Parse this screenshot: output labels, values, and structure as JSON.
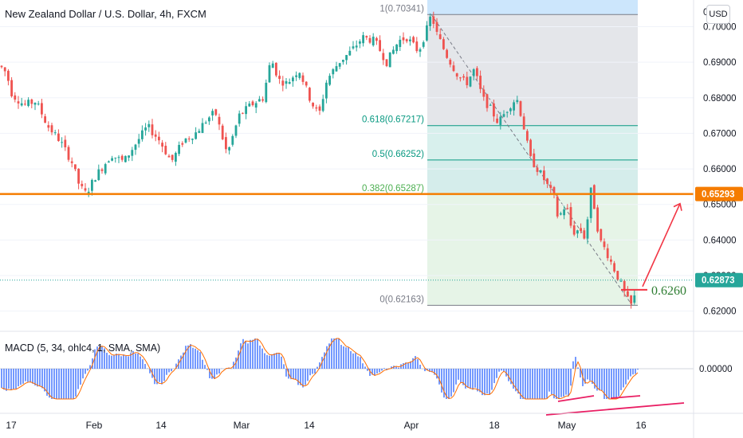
{
  "header": {
    "title": "New Zealand Dollar / U.S. Dollar, 4h, FXCM",
    "currency_button": "USD"
  },
  "macd": {
    "title": "MACD (5, 34, ohlc4, 1, SMA, SMA)"
  },
  "colors": {
    "up": "#26a69a",
    "down": "#ef5350",
    "macd_bar": "#2962ff",
    "signal_line": "#ff6d00",
    "resistance": "#f57c00",
    "arrow": "#f23645",
    "fib_gray": "#e1e3e8",
    "fib_teal": "#a8ddd6",
    "fib_green": "#c8e6c9",
    "fib_blue": "#bbdefb",
    "current_price": "#26a69a"
  },
  "chart_data": {
    "type": "candlestick",
    "symbol": "NZDUSD",
    "timeframe": "4h",
    "y_axis": {
      "min": 0.615,
      "max": 0.7075,
      "ticks": [
        "0.70000",
        "0.69000",
        "0.68000",
        "0.67000",
        "0.66000",
        "0.65000",
        "0.64000",
        "0.63000",
        "0.62000"
      ]
    },
    "x_axis": {
      "labels": [
        "17",
        "Feb",
        "14",
        "Mar",
        "14",
        "Apr",
        "18",
        "May",
        "16"
      ]
    },
    "price_path": [
      [
        0,
        0.689
      ],
      [
        8,
        0.687
      ],
      [
        15,
        0.681
      ],
      [
        30,
        0.678
      ],
      [
        45,
        0.679
      ],
      [
        60,
        0.672
      ],
      [
        75,
        0.668
      ],
      [
        90,
        0.662
      ],
      [
        100,
        0.655
      ],
      [
        108,
        0.653
      ],
      [
        120,
        0.658
      ],
      [
        140,
        0.664
      ],
      [
        155,
        0.662
      ],
      [
        170,
        0.667
      ],
      [
        185,
        0.672
      ],
      [
        200,
        0.668
      ],
      [
        215,
        0.662
      ],
      [
        230,
        0.668
      ],
      [
        245,
        0.67
      ],
      [
        260,
        0.674
      ],
      [
        270,
        0.676
      ],
      [
        280,
        0.668
      ],
      [
        285,
        0.664
      ],
      [
        300,
        0.675
      ],
      [
        315,
        0.678
      ],
      [
        330,
        0.68
      ],
      [
        340,
        0.691
      ],
      [
        350,
        0.685
      ],
      [
        360,
        0.684
      ],
      [
        375,
        0.688
      ],
      [
        390,
        0.679
      ],
      [
        400,
        0.675
      ],
      [
        410,
        0.685
      ],
      [
        425,
        0.69
      ],
      [
        440,
        0.693
      ],
      [
        455,
        0.697
      ],
      [
        470,
        0.696
      ],
      [
        485,
        0.69
      ],
      [
        500,
        0.696
      ],
      [
        510,
        0.697
      ],
      [
        525,
        0.693
      ],
      [
        535,
        0.699
      ],
      [
        541,
        0.7034
      ],
      [
        548,
        0.698
      ],
      [
        560,
        0.692
      ],
      [
        575,
        0.686
      ],
      [
        585,
        0.684
      ],
      [
        595,
        0.688
      ],
      [
        605,
        0.68
      ],
      [
        615,
        0.677
      ],
      [
        625,
        0.673
      ],
      [
        640,
        0.678
      ],
      [
        648,
        0.68
      ],
      [
        655,
        0.674
      ],
      [
        665,
        0.663
      ],
      [
        680,
        0.658
      ],
      [
        695,
        0.652
      ],
      [
        700,
        0.646
      ],
      [
        710,
        0.65
      ],
      [
        718,
        0.642
      ],
      [
        728,
        0.643
      ],
      [
        735,
        0.64
      ],
      [
        740,
        0.655
      ],
      [
        745,
        0.65
      ],
      [
        752,
        0.64
      ],
      [
        760,
        0.637
      ],
      [
        770,
        0.632
      ],
      [
        780,
        0.627
      ],
      [
        786,
        0.6235
      ],
      [
        792,
        0.6216
      ],
      [
        800,
        0.6265
      ]
    ],
    "current_price": "0.62873",
    "resistance": {
      "price": 0.65293,
      "label": "0.65293"
    },
    "fibonacci": {
      "levels": [
        {
          "ratio": 1,
          "price": 0.70341,
          "label": "1(0.70341)"
        },
        {
          "ratio": 0.618,
          "price": 0.67217,
          "label": "0.618(0.67217)"
        },
        {
          "ratio": 0.5,
          "price": 0.66252,
          "label": "0.5(0.66252)"
        },
        {
          "ratio": 0.382,
          "price": 0.65287,
          "label": "0.382(0.65287)"
        },
        {
          "ratio": 0,
          "price": 0.62163,
          "label": "0(0.62163)"
        }
      ]
    },
    "annotations": {
      "target_level": {
        "price": 0.626,
        "label": "0.6260"
      }
    },
    "macd": {
      "zero_tick": "0.00000"
    }
  }
}
